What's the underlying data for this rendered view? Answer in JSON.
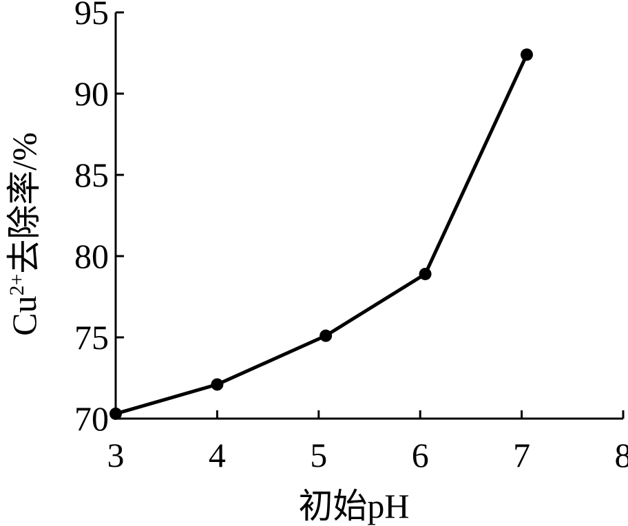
{
  "chart_data": {
    "type": "line",
    "xlabel": "初始pH",
    "ylabel": [
      "Cu",
      "2+",
      "去除率/%"
    ],
    "x": [
      3,
      4,
      5.07,
      6.05,
      7.05
    ],
    "series": [
      {
        "name": "Cu2+去除率",
        "color": "#000000",
        "values": [
          70.3,
          72.1,
          75.1,
          78.9,
          92.4
        ]
      }
    ],
    "xlim": [
      3,
      8
    ],
    "xticks": [
      3,
      4,
      5,
      6,
      7,
      8
    ],
    "ylim": [
      70,
      95
    ],
    "yticks": [
      70,
      75,
      80,
      85,
      90,
      95
    ],
    "grid": false
  }
}
